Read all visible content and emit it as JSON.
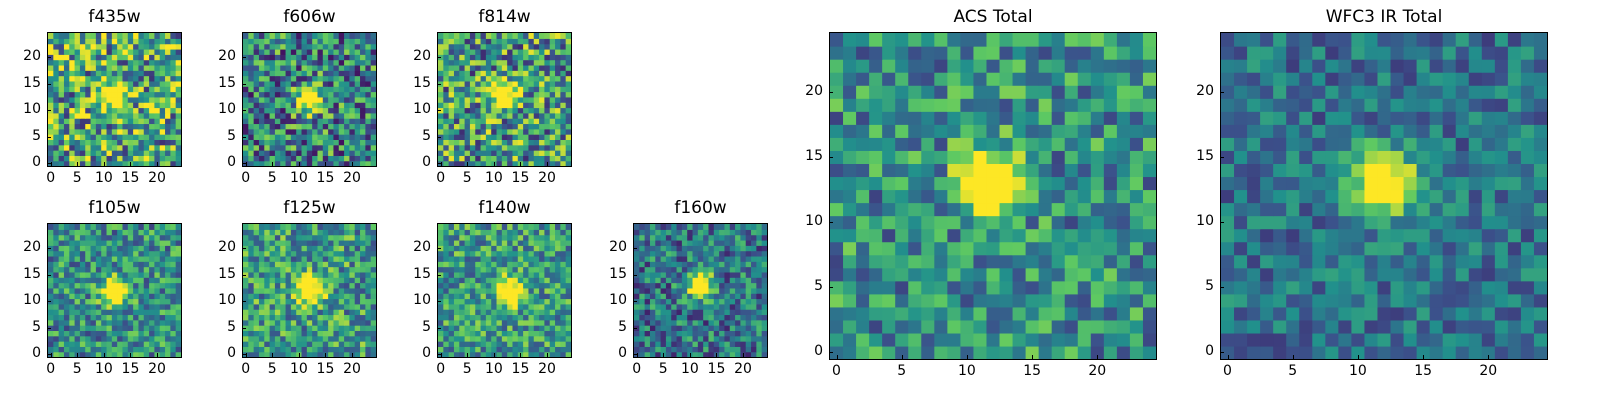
{
  "colormap": [
    "#440154",
    "#3b528b",
    "#21918c",
    "#5ec962",
    "#fde725"
  ],
  "chart_data": [
    {
      "type": "heatmap",
      "title": "f435w",
      "size": 25,
      "xticks": [
        0,
        5,
        10,
        15,
        20
      ],
      "yticks": [
        0,
        5,
        10,
        15,
        20
      ],
      "peak": [
        12,
        13
      ],
      "noise": 0.9,
      "seed": 11,
      "bg": 0.6
    },
    {
      "type": "heatmap",
      "title": "f606w",
      "size": 25,
      "xticks": [
        0,
        5,
        10,
        15,
        20
      ],
      "yticks": [
        0,
        5,
        10,
        15,
        20
      ],
      "peak": [
        12,
        12
      ],
      "noise": 0.8,
      "seed": 23,
      "bg": 0.45
    },
    {
      "type": "heatmap",
      "title": "f814w",
      "size": 25,
      "xticks": [
        0,
        5,
        10,
        15,
        20
      ],
      "yticks": [
        0,
        5,
        10,
        15,
        20
      ],
      "peak": [
        12,
        13
      ],
      "noise": 0.85,
      "seed": 37,
      "bg": 0.55
    },
    {
      "type": "heatmap",
      "title": "f105w",
      "size": 25,
      "xticks": [
        0,
        5,
        10,
        15,
        20
      ],
      "yticks": [
        0,
        5,
        10,
        15,
        20
      ],
      "peak": [
        12,
        12
      ],
      "noise": 0.6,
      "seed": 41,
      "bg": 0.5
    },
    {
      "type": "heatmap",
      "title": "f125w",
      "size": 25,
      "xticks": [
        0,
        5,
        10,
        15,
        20
      ],
      "yticks": [
        0,
        5,
        10,
        15,
        20
      ],
      "peak": [
        12,
        12
      ],
      "noise": 0.65,
      "seed": 53,
      "bg": 0.55
    },
    {
      "type": "heatmap",
      "title": "f140w",
      "size": 25,
      "xticks": [
        0,
        5,
        10,
        15,
        20
      ],
      "yticks": [
        0,
        5,
        10,
        15,
        20
      ],
      "peak": [
        13,
        12
      ],
      "noise": 0.6,
      "seed": 67,
      "bg": 0.55
    },
    {
      "type": "heatmap",
      "title": "f160w",
      "size": 25,
      "xticks": [
        0,
        5,
        10,
        15,
        20
      ],
      "yticks": [
        0,
        5,
        10,
        15,
        20
      ],
      "peak": [
        12,
        13
      ],
      "noise": 0.6,
      "seed": 79,
      "bg": 0.4
    },
    {
      "type": "heatmap",
      "title": "ACS Total",
      "size": 25,
      "xticks": [
        0,
        5,
        10,
        15,
        20
      ],
      "yticks": [
        0,
        5,
        10,
        15,
        20
      ],
      "peak": [
        12,
        13
      ],
      "noise": 0.6,
      "seed": 89,
      "bg": 0.5
    },
    {
      "type": "heatmap",
      "title": "WFC3 IR Total",
      "size": 25,
      "xticks": [
        0,
        5,
        10,
        15,
        20
      ],
      "yticks": [
        0,
        5,
        10,
        15,
        20
      ],
      "peak": [
        12,
        13
      ],
      "noise": 0.4,
      "seed": 97,
      "bg": 0.38
    }
  ]
}
